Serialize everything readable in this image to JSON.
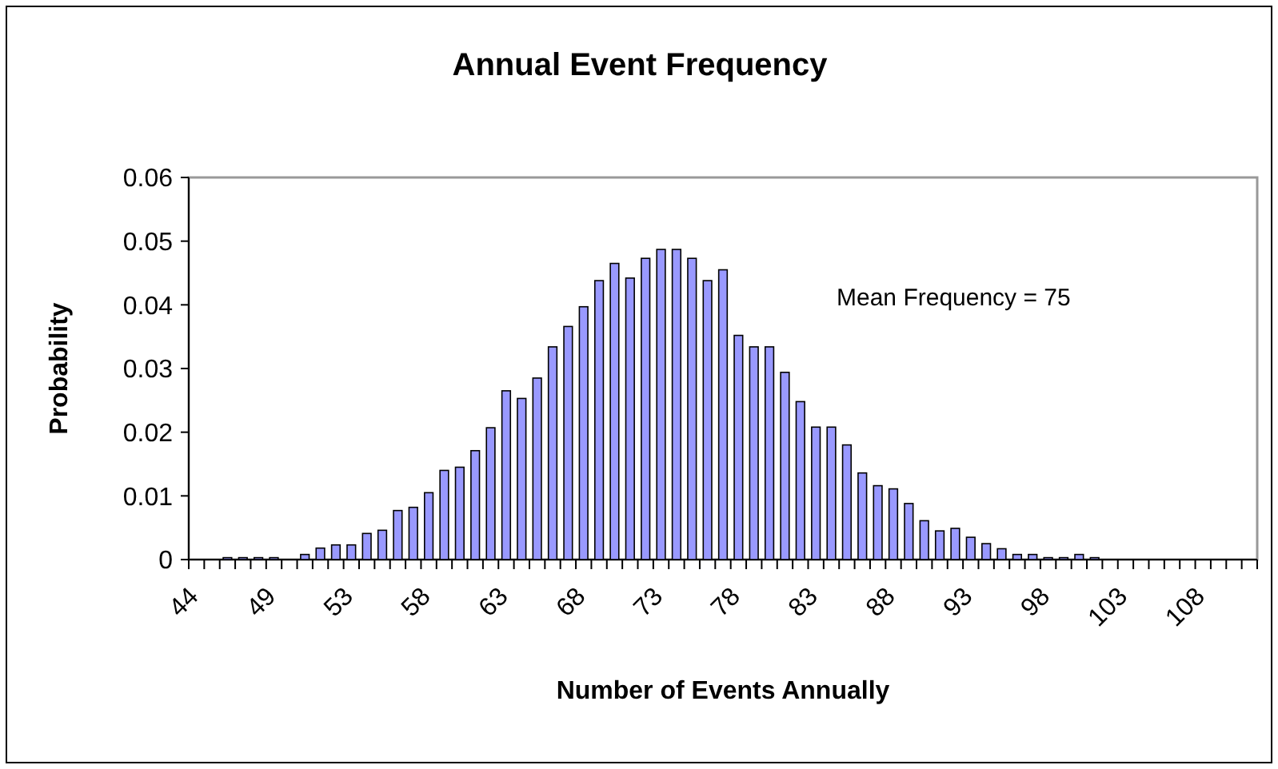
{
  "chart_data": {
    "type": "bar",
    "title": "Annual Event Frequency",
    "xlabel": "Number of Events Annually",
    "ylabel": "Probability",
    "categories": [
      "44",
      null,
      null,
      null,
      null,
      "49",
      null,
      null,
      null,
      null,
      "53",
      null,
      null,
      null,
      null,
      "58",
      null,
      null,
      null,
      null,
      "63",
      null,
      null,
      null,
      null,
      "68",
      null,
      null,
      null,
      null,
      "73",
      null,
      null,
      null,
      null,
      "78",
      null,
      null,
      null,
      null,
      "83",
      null,
      null,
      null,
      null,
      "88",
      null,
      null,
      null,
      null,
      "93",
      null,
      null,
      null,
      null,
      "98",
      null,
      null,
      null,
      null,
      "103",
      null,
      null,
      null,
      null,
      "108",
      null,
      null,
      null
    ],
    "values": [
      0,
      0,
      0.0003,
      0.0003,
      0.0003,
      0.0003,
      0,
      0.0008,
      0.0018,
      0.0023,
      0.0023,
      0.0041,
      0.0046,
      0.0077,
      0.0082,
      0.0105,
      0.014,
      0.0145,
      0.0171,
      0.0207,
      0.0265,
      0.0253,
      0.0285,
      0.0334,
      0.0366,
      0.0397,
      0.0438,
      0.0465,
      0.0442,
      0.0473,
      0.0487,
      0.0487,
      0.0473,
      0.0438,
      0.0455,
      0.0352,
      0.0334,
      0.0334,
      0.0294,
      0.0248,
      0.0208,
      0.0208,
      0.018,
      0.0136,
      0.0116,
      0.0111,
      0.0088,
      0.0061,
      0.0045,
      0.0049,
      0.0035,
      0.0025,
      0.0017,
      0.0008,
      0.0008,
      0.0003,
      0.0003,
      0.0008,
      0.0003,
      0,
      0,
      0,
      0,
      0,
      0,
      0,
      0,
      0,
      0
    ],
    "color": "#9999ff",
    "ylim": [
      0,
      0.06
    ],
    "yticks": [
      0,
      0.01,
      0.02,
      0.03,
      0.04,
      0.05,
      0.06
    ],
    "annotations": [
      "Mean Frequency = 75"
    ]
  }
}
